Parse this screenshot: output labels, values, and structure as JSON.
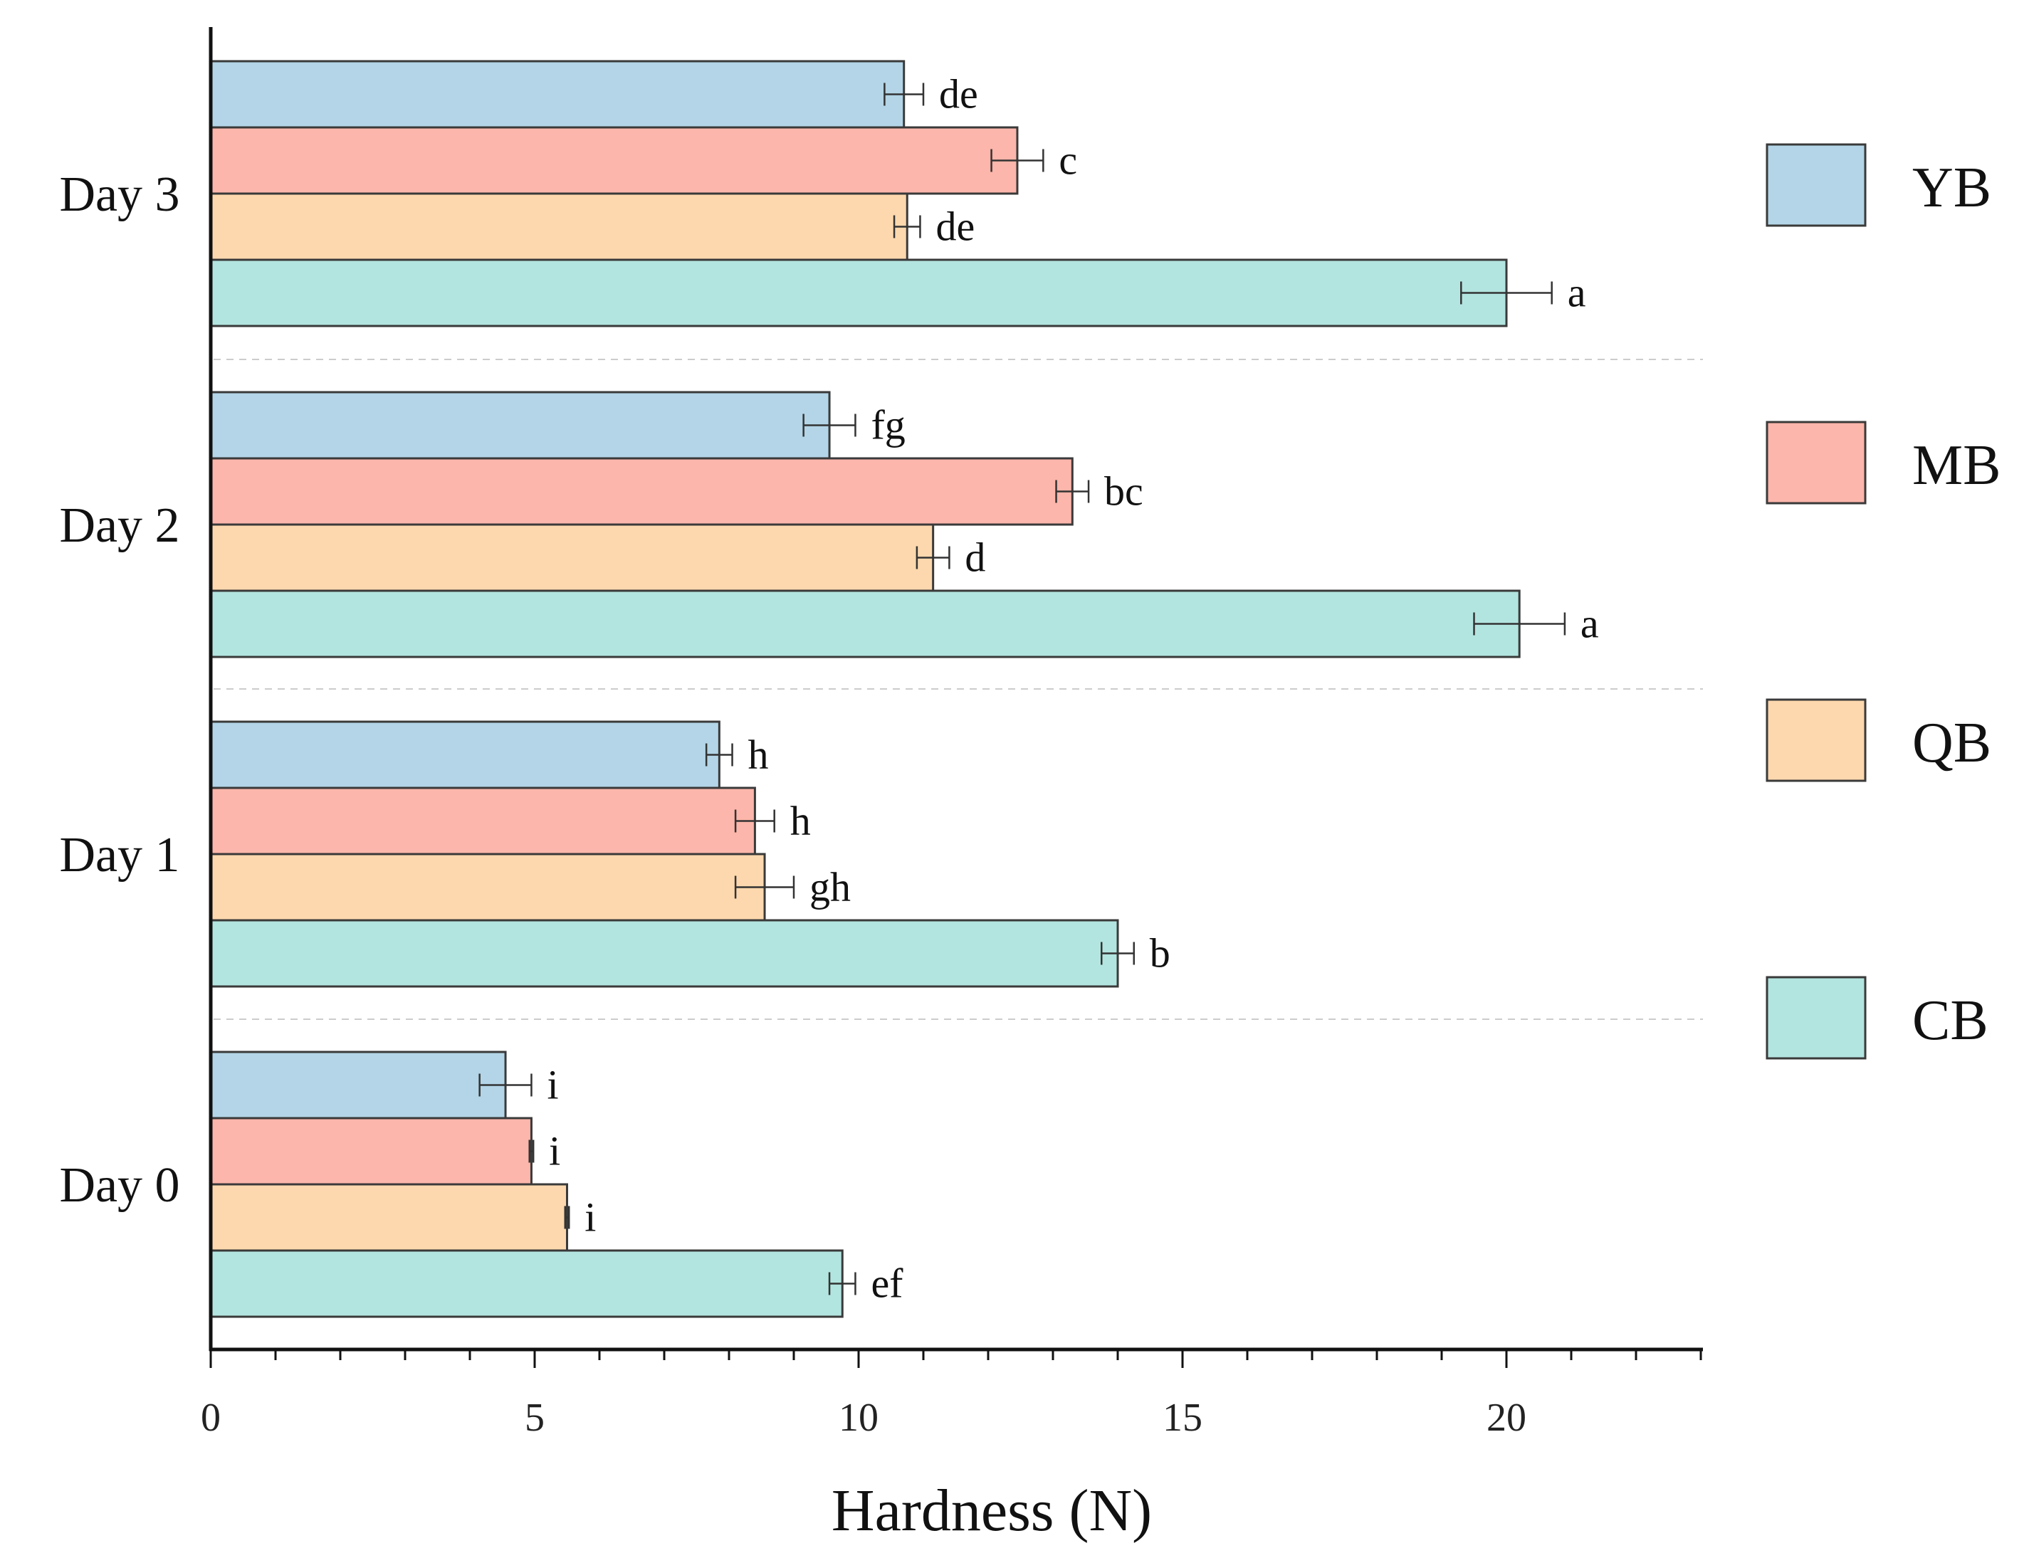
{
  "chart_data": {
    "type": "bar",
    "orientation": "horizontal",
    "title": "",
    "xlabel": "Hardness (N)",
    "ylabel": "",
    "xlim": [
      0,
      23
    ],
    "xticks": [
      0,
      5,
      10,
      15,
      20
    ],
    "xtick_labels": [
      "0",
      "5",
      "10",
      "15",
      "20"
    ],
    "categories": [
      "Day 0",
      "Day 1",
      "Day 2",
      "Day 3"
    ],
    "legend_position": "right",
    "series": [
      {
        "name": "YB",
        "color": "#B3D5E7",
        "values": [
          4.55,
          7.85,
          9.55,
          10.7
        ],
        "errors": [
          0.4,
          0.2,
          0.4,
          0.3
        ],
        "letters": [
          "i",
          "h",
          "fg",
          "de"
        ]
      },
      {
        "name": "MB",
        "color": "#FDB6AB",
        "values": [
          4.95,
          8.4,
          13.3,
          12.45
        ],
        "errors": [
          0.03,
          0.3,
          0.25,
          0.4
        ],
        "letters": [
          "i",
          "h",
          "bc",
          "c"
        ]
      },
      {
        "name": "QB",
        "color": "#FDD8AE",
        "values": [
          5.5,
          8.55,
          11.15,
          10.75
        ],
        "errors": [
          0.03,
          0.45,
          0.25,
          0.2
        ],
        "letters": [
          "i",
          "gh",
          "d",
          "de"
        ]
      },
      {
        "name": "CB",
        "color": "#B3E5E0",
        "values": [
          9.75,
          14.0,
          20.2,
          20.0
        ],
        "errors": [
          0.2,
          0.25,
          0.7,
          0.7
        ],
        "letters": [
          "ef",
          "b",
          "a",
          "a"
        ]
      }
    ],
    "legend_order": [
      "YB",
      "MB",
      "QB",
      "CB"
    ]
  }
}
